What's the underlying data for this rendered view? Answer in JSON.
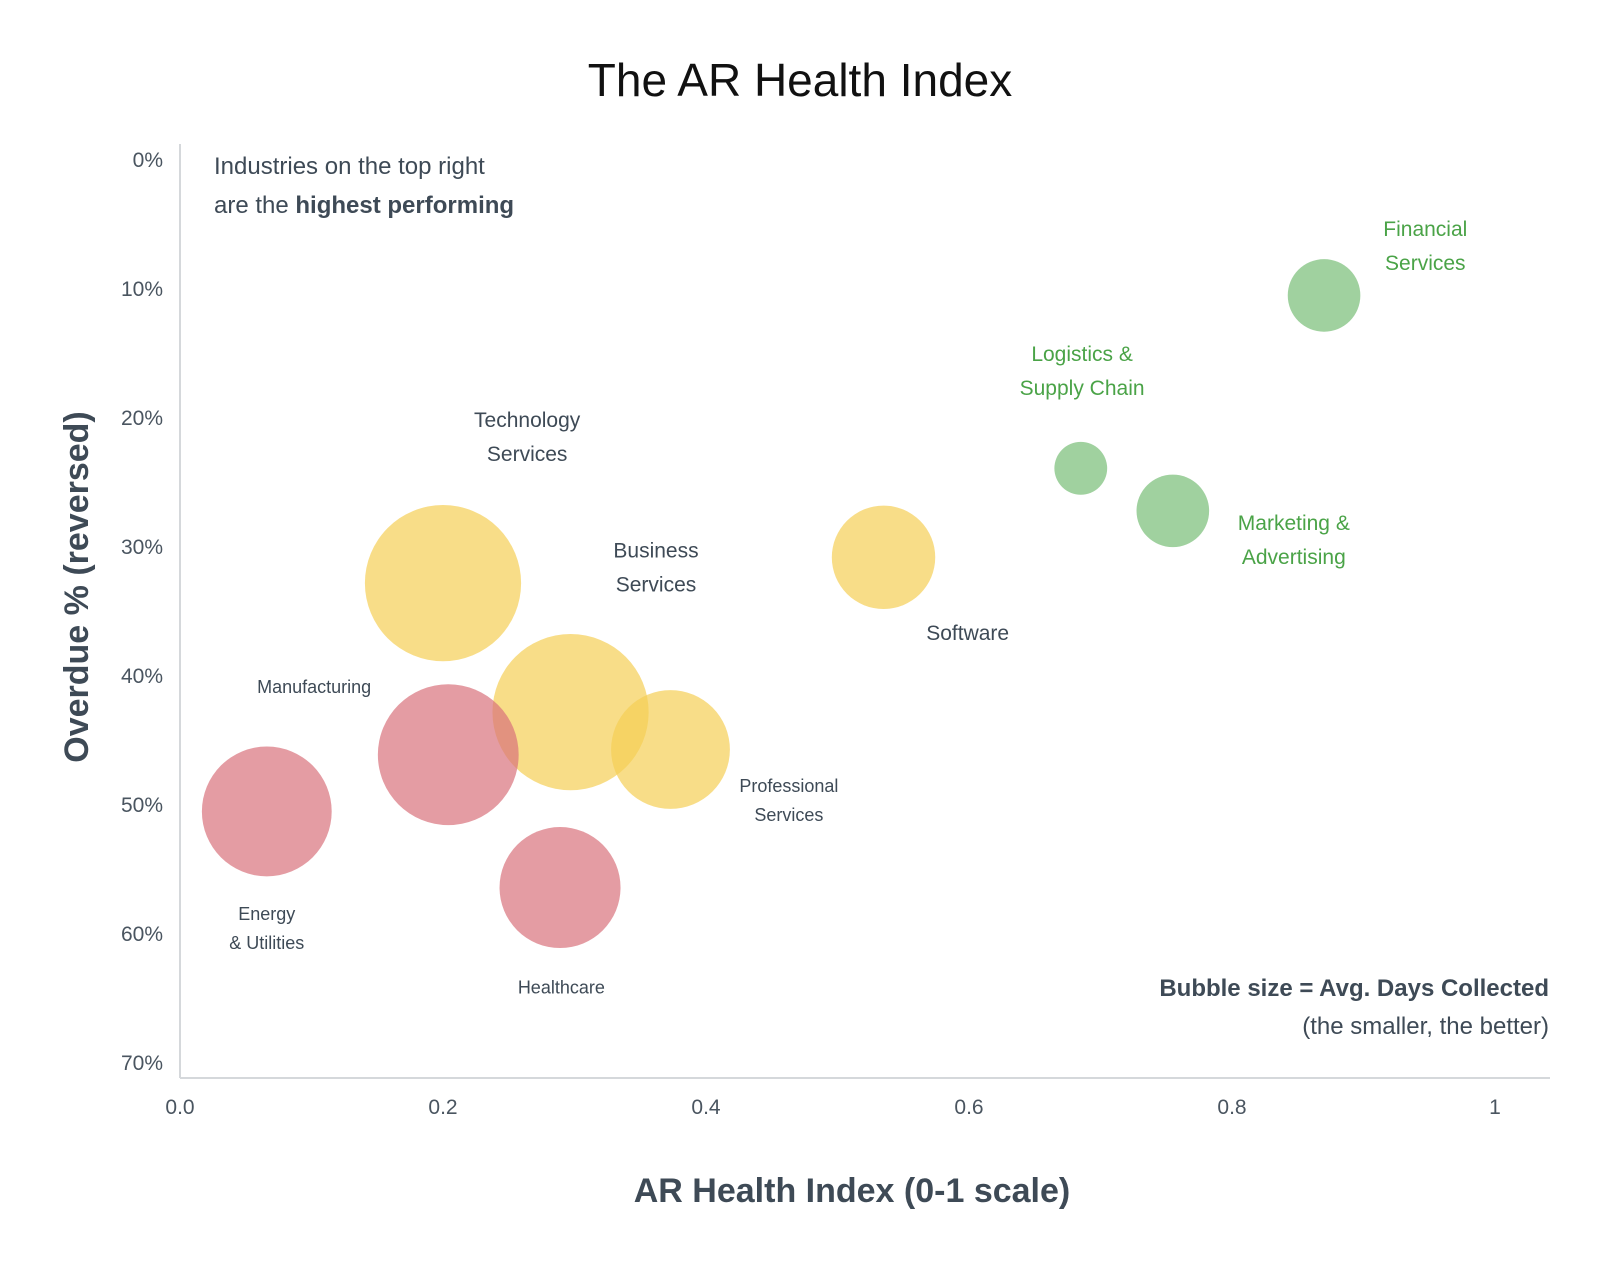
{
  "chart_data": {
    "type": "scatter",
    "title": "The AR Health Index",
    "xlabel": "AR Health Index (0-1 scale)",
    "ylabel": "Overdue % (reversed)",
    "xlim": [
      0,
      1.04
    ],
    "ylim": [
      0,
      71
    ],
    "y_reversed": true,
    "x_ticks": [
      {
        "value": 0,
        "label": "0.0"
      },
      {
        "value": 0.2,
        "label": "0.2"
      },
      {
        "value": 0.4,
        "label": "0.4"
      },
      {
        "value": 0.6,
        "label": "0.6"
      },
      {
        "value": 0.8,
        "label": "0.8"
      },
      {
        "value": 1,
        "label": "1"
      }
    ],
    "y_ticks": [
      {
        "value": 0,
        "label": "0%"
      },
      {
        "value": 10,
        "label": "10%"
      },
      {
        "value": 20,
        "label": "20%"
      },
      {
        "value": 30,
        "label": "30%"
      },
      {
        "value": 40,
        "label": "40%"
      },
      {
        "value": 50,
        "label": "50%"
      },
      {
        "value": 60,
        "label": "60%"
      },
      {
        "value": 70,
        "label": "70%"
      }
    ],
    "grid": false,
    "colors": {
      "red": "#d9727c",
      "yellow": "#f5cf55",
      "green": "#7cbf7a",
      "green_label": "#4aa347",
      "label": "#3e4a56"
    },
    "size_unit": "relative bubble size (Avg. Days Collected)",
    "points": [
      {
        "name": "Financial Services",
        "label_lines": [
          "Financial",
          "Services"
        ],
        "x": 0.87,
        "y": 10.5,
        "size": 33,
        "color": "green",
        "label_dx": 0.077,
        "label_dy": -4.6,
        "label_size": "lg"
      },
      {
        "name": "Logistics & Supply Chain",
        "label_lines": [
          "Logistics &",
          "Supply Chain"
        ],
        "x": 0.685,
        "y": 23.9,
        "size": 24,
        "color": "green",
        "label_dx": 0.001,
        "label_dy": -8.3,
        "label_size": "lg"
      },
      {
        "name": "Marketing & Advertising",
        "label_lines": [
          "Marketing &",
          "Advertising"
        ],
        "x": 0.755,
        "y": 27.2,
        "size": 33,
        "color": "green",
        "label_dx": 0.092,
        "label_dy": 1.5,
        "label_size": "lg"
      },
      {
        "name": "Software",
        "label_lines": [
          "Software"
        ],
        "x": 0.535,
        "y": 30.8,
        "size": 47,
        "color": "yellow",
        "label_dx": 0.064,
        "label_dy": 6.4,
        "label_size": "lg"
      },
      {
        "name": "Technology Services",
        "label_lines": [
          "Technology",
          "Services"
        ],
        "x": 0.2,
        "y": 32.8,
        "size": 71,
        "color": "yellow",
        "label_dx": 0.064,
        "label_dy": -12.1,
        "label_size": "lg"
      },
      {
        "name": "Business Services",
        "label_lines": [
          "Business",
          "Services"
        ],
        "x": 0.297,
        "y": 42.8,
        "size": 71,
        "color": "yellow",
        "label_dx": 0.065,
        "label_dy": -12.0,
        "label_size": "lg"
      },
      {
        "name": "Professional Services",
        "label_lines": [
          "Professional",
          "Services"
        ],
        "x": 0.373,
        "y": 45.7,
        "size": 54,
        "color": "yellow",
        "label_dx": 0.09,
        "label_dy": 3.3,
        "label_size": "sm"
      },
      {
        "name": "Manufacturing",
        "label_lines": [
          "Manufacturing"
        ],
        "x": 0.204,
        "y": 46.1,
        "size": 64,
        "color": "red",
        "label_dx": -0.102,
        "label_dy": -4.8,
        "label_size": "sm"
      },
      {
        "name": "Energy & Utilities",
        "label_lines": [
          "Energy",
          "& Utilities"
        ],
        "x": 0.066,
        "y": 50.5,
        "size": 59,
        "color": "red",
        "label_dx": 0.0,
        "label_dy": 8.4,
        "label_size": "sm"
      },
      {
        "name": "Healthcare",
        "label_lines": [
          "Healthcare"
        ],
        "x": 0.289,
        "y": 56.4,
        "size": 55,
        "color": "red",
        "label_dx": 0.001,
        "label_dy": 8.2,
        "label_size": "sm"
      }
    ],
    "annotations": {
      "top_left": {
        "line1": "Industries on the top right",
        "line2_prefix": "are the ",
        "line2_bold": "highest performing"
      },
      "bottom_right": {
        "line1": "Bubble size = Avg. Days Collected",
        "line2": "(the smaller, the better)"
      }
    }
  }
}
